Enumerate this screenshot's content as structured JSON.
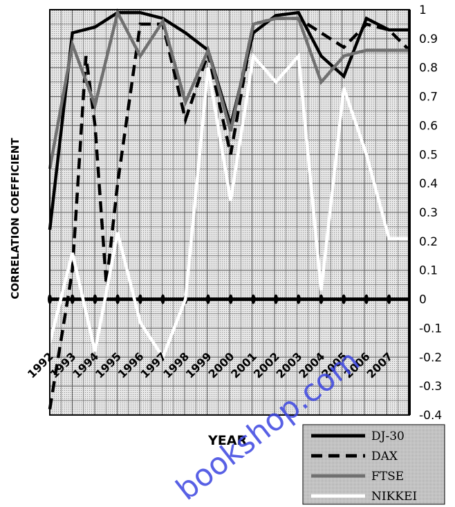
{
  "chart_data": {
    "type": "line",
    "xlabel": "YEAR",
    "ylabel": "CORRELATION COEFFICIENT",
    "categories": [
      "1992",
      "1993",
      "1994",
      "1995",
      "1996",
      "1997",
      "1998",
      "1999",
      "2000",
      "2001",
      "2002",
      "2003",
      "2004",
      "2005",
      "2006",
      "2007"
    ],
    "ylim": [
      -0.4,
      1.0
    ],
    "yticks": [
      1,
      0.9,
      0.8,
      0.7,
      0.6,
      0.5,
      0.4,
      0.3,
      0.2,
      0.1,
      0,
      -0.1,
      -0.2,
      -0.3,
      -0.4
    ],
    "grid": true,
    "legend_position": "bottom-right",
    "series": [
      {
        "name": "DJ-30",
        "color": "#000000",
        "dash": "solid",
        "x": [
          1992,
          1993,
          1994,
          1995,
          1996,
          1997,
          1998,
          1999,
          2000,
          2001,
          2002,
          2003,
          2004,
          2005,
          2006,
          2007,
          2007.9
        ],
        "y": [
          0.24,
          0.92,
          0.94,
          0.99,
          0.99,
          0.97,
          0.92,
          0.86,
          0.6,
          0.92,
          0.98,
          0.99,
          0.84,
          0.77,
          0.97,
          0.93,
          0.93
        ]
      },
      {
        "name": "DAX",
        "color": "#000000",
        "dash": "dashed",
        "x": [
          1992,
          1993,
          1993.6,
          1994,
          1994.5,
          1995,
          1996,
          1997,
          1998,
          1999,
          2000,
          2001,
          2002,
          2003,
          2004,
          2005,
          2006,
          2007,
          2007.9
        ],
        "y": [
          -0.38,
          0.1,
          0.84,
          0.6,
          0.05,
          0.4,
          0.95,
          0.95,
          0.62,
          0.85,
          0.5,
          0.95,
          0.97,
          0.97,
          0.92,
          0.87,
          0.95,
          0.93,
          0.86
        ]
      },
      {
        "name": "FTSE",
        "color": "#707070",
        "dash": "solid",
        "x": [
          1992,
          1993,
          1994,
          1995,
          1996,
          1997,
          1998,
          1999,
          2000,
          2001,
          2002,
          2003,
          2004,
          2005,
          2006,
          2007,
          2007.9
        ],
        "y": [
          0.45,
          0.88,
          0.67,
          0.99,
          0.84,
          0.96,
          0.68,
          0.86,
          0.58,
          0.95,
          0.97,
          0.97,
          0.75,
          0.84,
          0.86,
          0.86,
          0.86
        ]
      },
      {
        "name": "NIKKEI",
        "color": "#ffffff",
        "dash": "solid",
        "x": [
          1992,
          1993,
          1994,
          1995,
          1996,
          1997,
          1998,
          1999,
          2000,
          2001,
          2002,
          2003,
          2004,
          2005,
          2006,
          2007,
          2007.9
        ],
        "y": [
          -0.15,
          0.16,
          -0.18,
          0.23,
          -0.08,
          -0.2,
          0.0,
          0.8,
          0.34,
          0.84,
          0.75,
          0.84,
          0.03,
          0.73,
          0.5,
          0.21,
          0.21
        ]
      }
    ]
  },
  "watermark": "bookshop.com"
}
